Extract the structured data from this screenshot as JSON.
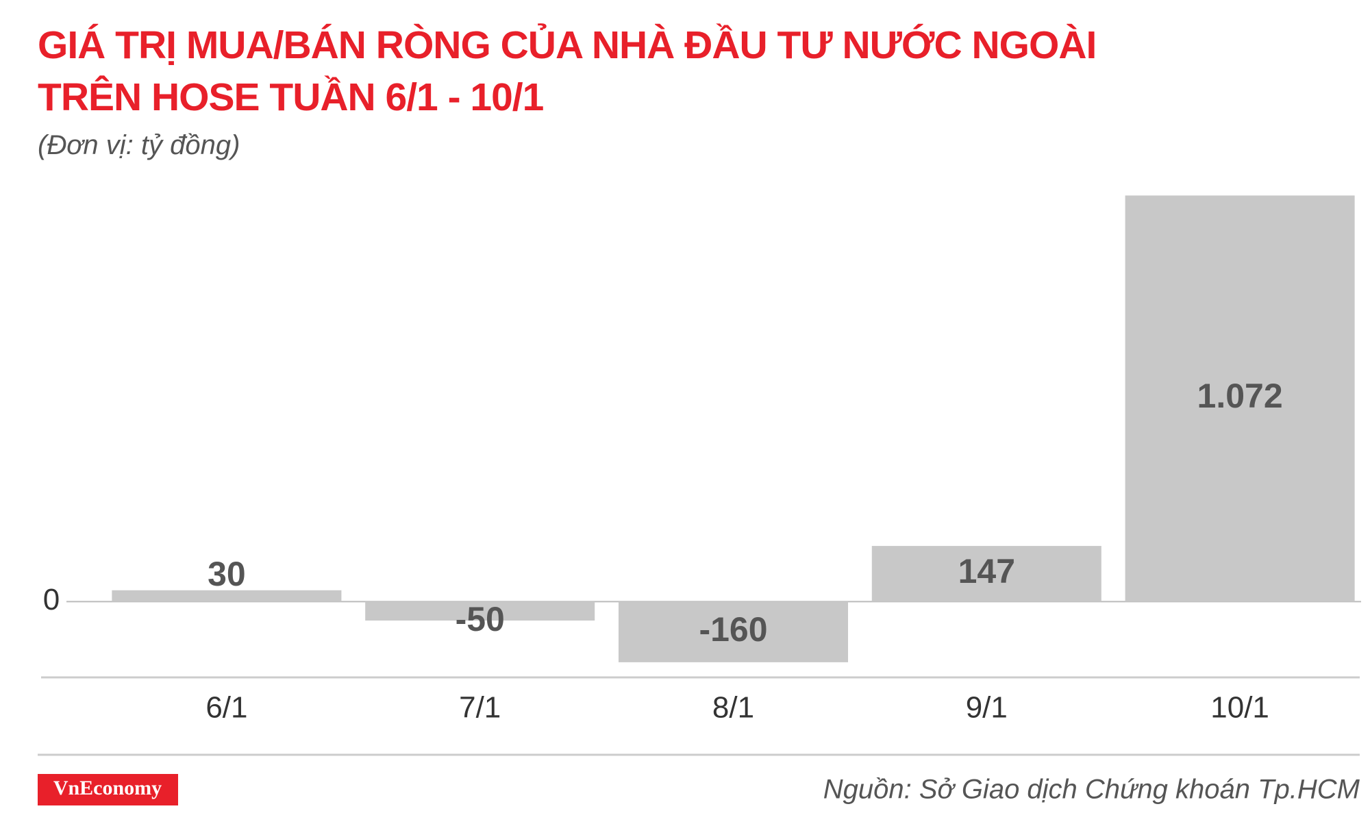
{
  "chart_data": {
    "type": "bar",
    "title": "GIÁ TRỊ MUA/BÁN RÒNG CỦA NHÀ ĐẦU TƯ NƯỚC NGOÀI TRÊN HOSE TUẦN 6/1 - 10/1",
    "subtitle": "(Đơn vị: tỷ đồng)",
    "categories": [
      "6/1",
      "7/1",
      "8/1",
      "9/1",
      "10/1"
    ],
    "values": [
      30,
      -50,
      -160,
      147,
      1072
    ],
    "value_labels": [
      "30",
      "-50",
      "-160",
      "147",
      "1.072"
    ],
    "color": "#c8c8c8",
    "ylim": [
      -200,
      1080
    ],
    "yticks": [
      0
    ],
    "source": "Nguồn: Sở Giao dịch Chứng khoán Tp.HCM"
  },
  "brand": "VnEconomy"
}
